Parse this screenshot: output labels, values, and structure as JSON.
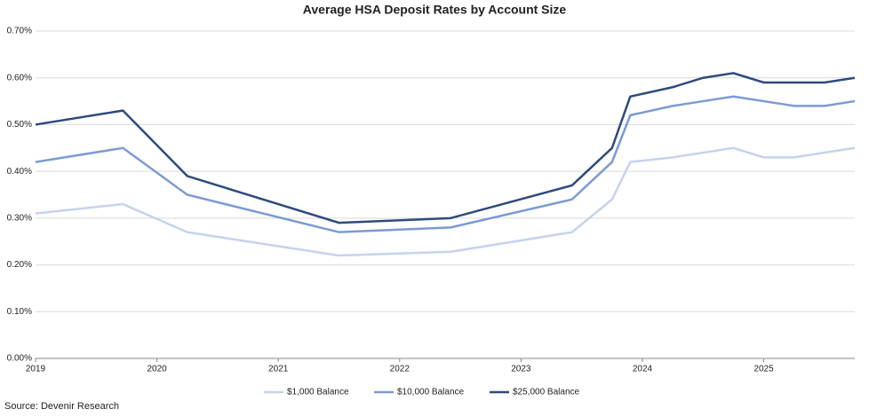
{
  "chart_data": {
    "type": "line",
    "title": "Average HSA Deposit Rates by Account Size",
    "x": [
      2019.0,
      2019.72,
      2020.25,
      2021.5,
      2022.42,
      2023.42,
      2023.75,
      2023.9,
      2024.25,
      2024.5,
      2024.75,
      2025.0,
      2025.25,
      2025.5,
      2025.75
    ],
    "series": [
      {
        "name": "$1,000 Balance",
        "color": "#c5d3ec",
        "values": [
          0.31,
          0.33,
          0.27,
          0.22,
          0.228,
          0.27,
          0.34,
          0.42,
          0.43,
          0.44,
          0.45,
          0.43,
          0.43,
          0.44,
          0.45
        ]
      },
      {
        "name": "$10,000 Balance",
        "color": "#7b9bd4",
        "values": [
          0.42,
          0.45,
          0.35,
          0.27,
          0.28,
          0.34,
          0.42,
          0.52,
          0.54,
          0.55,
          0.56,
          0.55,
          0.54,
          0.54,
          0.55
        ]
      },
      {
        "name": "$25,000 Balance",
        "color": "#2e4a7d",
        "values": [
          0.5,
          0.53,
          0.39,
          0.29,
          0.3,
          0.37,
          0.45,
          0.56,
          0.58,
          0.6,
          0.61,
          0.59,
          0.59,
          0.59,
          0.6
        ]
      }
    ],
    "xlim": [
      2019,
      2025.75
    ],
    "xticks": [
      2019,
      2020,
      2021,
      2022,
      2023,
      2024,
      2025
    ],
    "ylim": [
      0,
      0.7
    ],
    "yticks": [
      {
        "value": 0,
        "label": "0.00%"
      },
      {
        "value": 0.1,
        "label": "0.10%"
      },
      {
        "value": 0.2,
        "label": "0.20%"
      },
      {
        "value": 0.3,
        "label": "0.30%"
      },
      {
        "value": 0.4,
        "label": "0.40%"
      },
      {
        "value": 0.5,
        "label": "0.50%"
      },
      {
        "value": 0.6,
        "label": "0.60%"
      },
      {
        "value": 0.7,
        "label": "0.70%"
      }
    ],
    "grid": true,
    "legend": "bottom",
    "source": "Source: Devenir Research"
  }
}
